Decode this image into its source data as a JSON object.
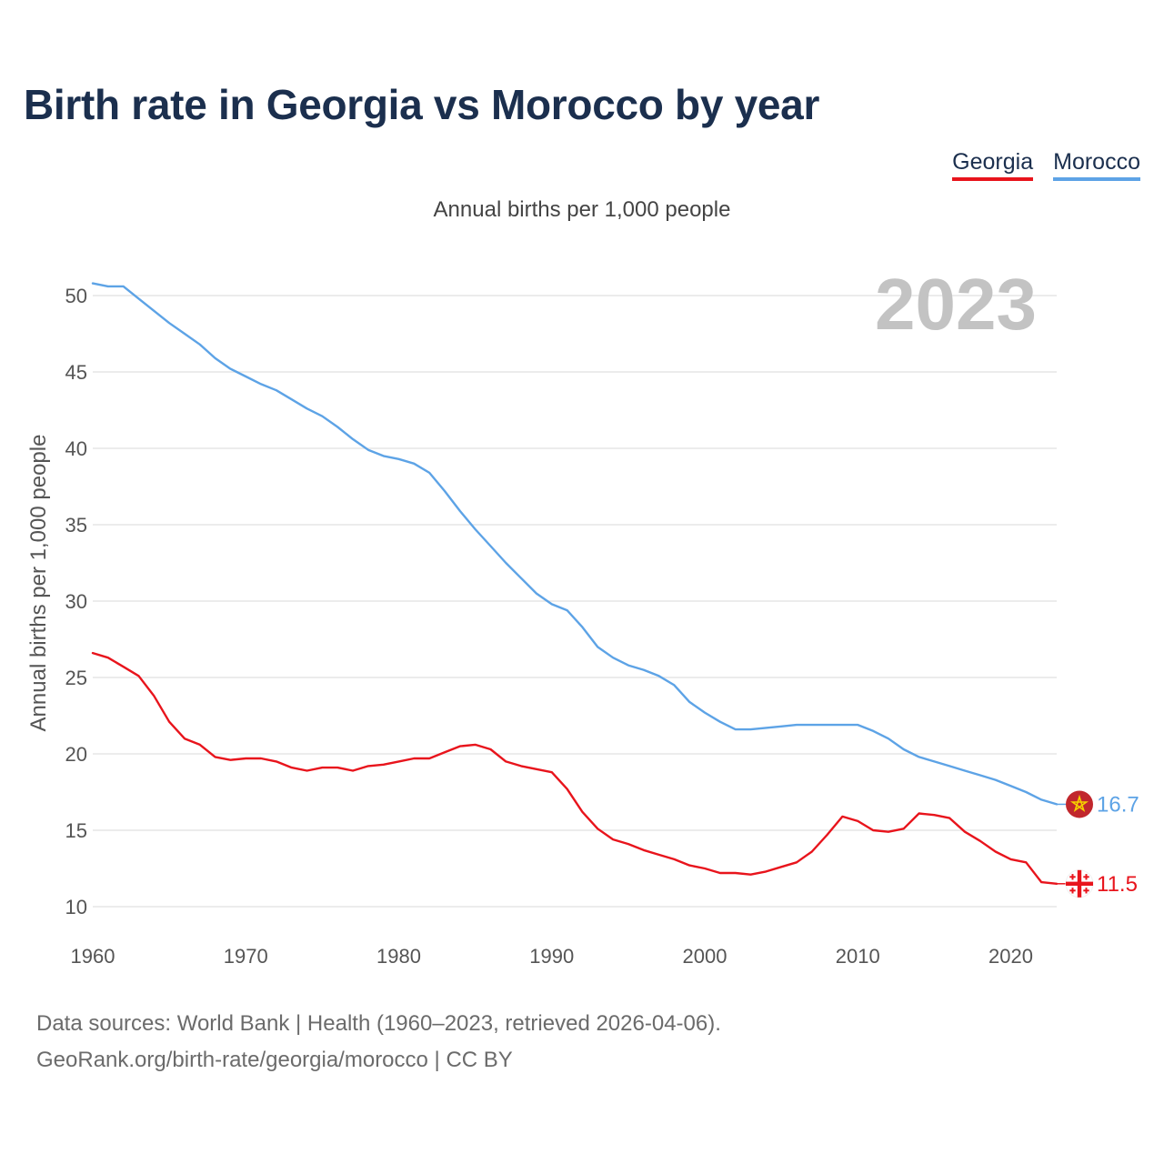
{
  "title": "Birth rate in Georgia vs Morocco by year",
  "subtitle": "Annual births per 1,000 people",
  "legend": [
    {
      "name": "Georgia",
      "color": "#e8141c"
    },
    {
      "name": "Morocco",
      "color": "#5da3e6"
    }
  ],
  "footer": {
    "line1": "Data sources: World Bank | Health (1960–2023, retrieved 2026-04-06).",
    "line2": "GeoRank.org/birth-rate/georgia/morocco | CC BY"
  },
  "chart_data": {
    "type": "line",
    "title": "Birth rate in Georgia vs Morocco by year",
    "ylabel": "Annual births per 1,000 people",
    "xlabel": "",
    "year_label": "2023",
    "xlim": [
      1960,
      2023
    ],
    "ylim": [
      10,
      52
    ],
    "x_ticks": [
      1960,
      1970,
      1980,
      1990,
      2000,
      2010,
      2020
    ],
    "y_ticks": [
      10,
      15,
      20,
      25,
      30,
      35,
      40,
      45,
      50
    ],
    "grid": true,
    "x": [
      1960,
      1961,
      1962,
      1963,
      1964,
      1965,
      1966,
      1967,
      1968,
      1969,
      1970,
      1971,
      1972,
      1973,
      1974,
      1975,
      1976,
      1977,
      1978,
      1979,
      1980,
      1981,
      1982,
      1983,
      1984,
      1985,
      1986,
      1987,
      1988,
      1989,
      1990,
      1991,
      1992,
      1993,
      1994,
      1995,
      1996,
      1997,
      1998,
      1999,
      2000,
      2001,
      2002,
      2003,
      2004,
      2005,
      2006,
      2007,
      2008,
      2009,
      2010,
      2011,
      2012,
      2013,
      2014,
      2015,
      2016,
      2017,
      2018,
      2019,
      2020,
      2021,
      2022,
      2023
    ],
    "series": [
      {
        "name": "Georgia",
        "color": "#e8141c",
        "end_label": "11.5",
        "flag_icon": "georgia-flag-icon",
        "values": [
          26.6,
          26.3,
          25.7,
          25.1,
          23.8,
          22.1,
          21.0,
          20.6,
          19.8,
          19.6,
          19.7,
          19.7,
          19.5,
          19.1,
          18.9,
          19.1,
          19.1,
          18.9,
          19.2,
          19.3,
          19.5,
          19.7,
          19.7,
          20.1,
          20.5,
          20.6,
          20.3,
          19.5,
          19.2,
          19.0,
          18.8,
          17.7,
          16.2,
          15.1,
          14.4,
          14.1,
          13.7,
          13.4,
          13.1,
          12.7,
          12.5,
          12.2,
          12.2,
          12.1,
          12.3,
          12.6,
          12.9,
          13.6,
          14.7,
          15.9,
          15.6,
          15.0,
          14.9,
          15.1,
          16.1,
          16.0,
          15.8,
          14.9,
          14.3,
          13.6,
          13.1,
          12.9,
          11.6,
          11.5
        ]
      },
      {
        "name": "Morocco",
        "color": "#5da3e6",
        "end_label": "16.7",
        "flag_icon": "morocco-flag-icon",
        "values": [
          50.8,
          50.6,
          50.6,
          49.8,
          49.0,
          48.2,
          47.5,
          46.8,
          45.9,
          45.2,
          44.7,
          44.2,
          43.8,
          43.2,
          42.6,
          42.1,
          41.4,
          40.6,
          39.9,
          39.5,
          39.3,
          39.0,
          38.4,
          37.2,
          35.9,
          34.7,
          33.6,
          32.5,
          31.5,
          30.5,
          29.8,
          29.4,
          28.3,
          27.0,
          26.3,
          25.8,
          25.5,
          25.1,
          24.5,
          23.4,
          22.7,
          22.1,
          21.6,
          21.6,
          21.7,
          21.8,
          21.9,
          21.9,
          21.9,
          21.9,
          21.9,
          21.5,
          21.0,
          20.3,
          19.8,
          19.5,
          19.2,
          18.9,
          18.6,
          18.3,
          17.9,
          17.5,
          17.0,
          16.7
        ]
      }
    ]
  }
}
